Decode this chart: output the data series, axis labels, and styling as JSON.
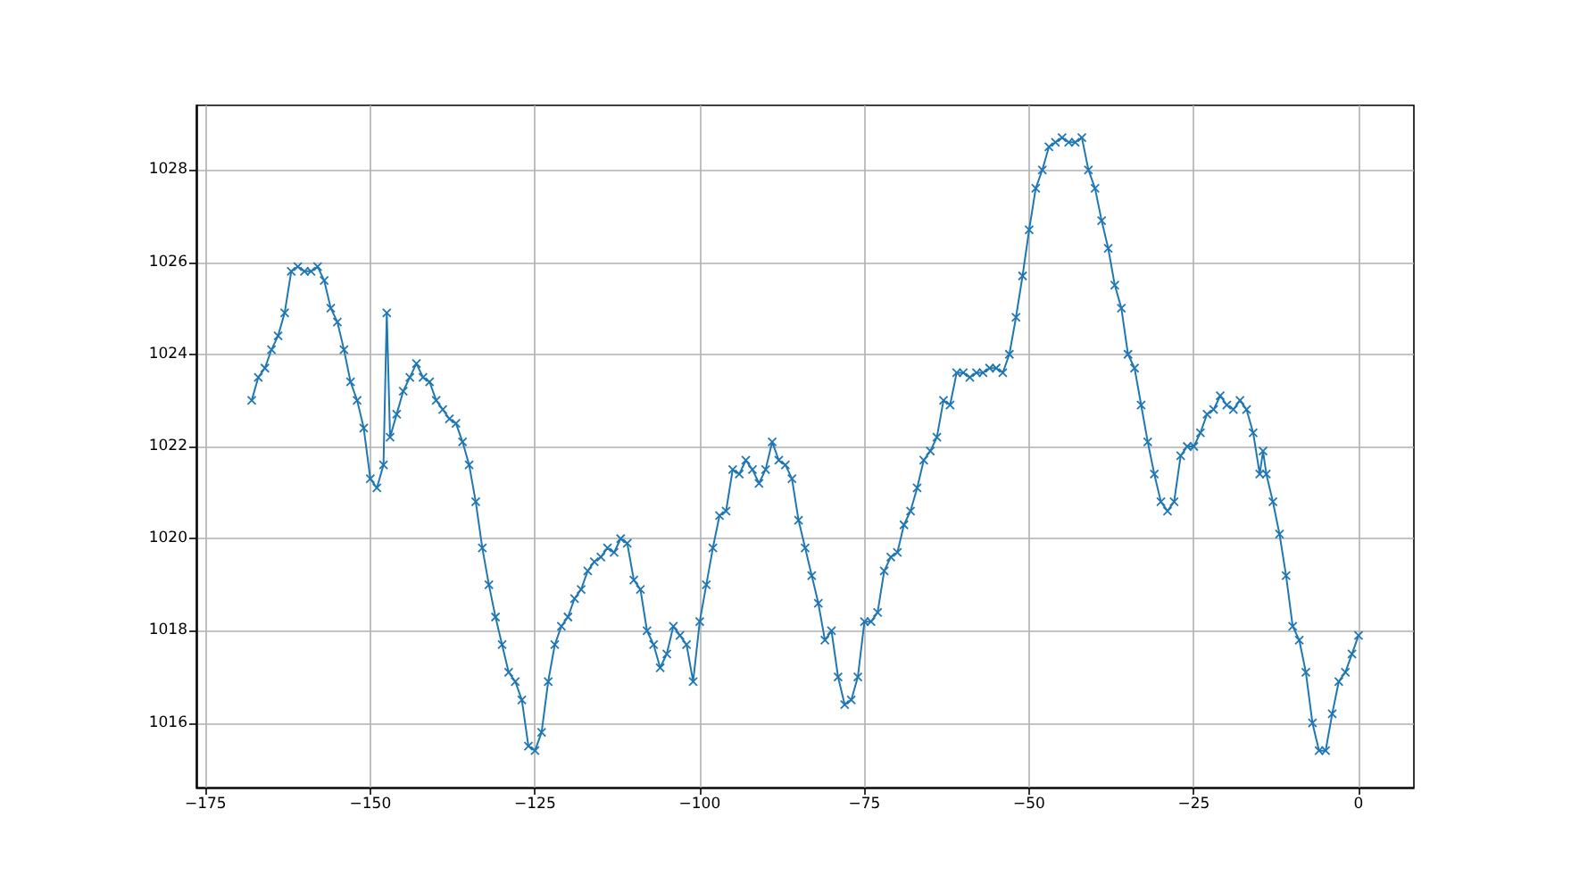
{
  "chart_data": {
    "type": "line",
    "color": "#1f77b4",
    "marker": "cross",
    "grid": true,
    "xlim": [
      -176.4,
      8.4
    ],
    "ylim": [
      1014.6,
      1029.4
    ],
    "xticks": [
      {
        "value": -175,
        "label": "−175"
      },
      {
        "value": -150,
        "label": "−150"
      },
      {
        "value": -125,
        "label": "−125"
      },
      {
        "value": -100,
        "label": "−100"
      },
      {
        "value": -75,
        "label": "−75"
      },
      {
        "value": -50,
        "label": "−50"
      },
      {
        "value": -25,
        "label": "−25"
      },
      {
        "value": 0,
        "label": "0"
      }
    ],
    "yticks": [
      1016,
      1018,
      1020,
      1022,
      1024,
      1026,
      1028
    ],
    "x": [
      -168,
      -167,
      -166,
      -165,
      -164,
      -163,
      -162,
      -161,
      -160,
      -159,
      -158,
      -157,
      -156,
      -155,
      -154,
      -153,
      -152,
      -151,
      -150,
      -149,
      -148,
      -147.5,
      -147,
      -146,
      -145,
      -144,
      -143,
      -142,
      -141,
      -140,
      -139,
      -138,
      -137,
      -136,
      -135,
      -134,
      -133,
      -132,
      -131,
      -130,
      -129,
      -128,
      -127,
      -126,
      -125,
      -124,
      -123,
      -122,
      -121,
      -120,
      -119,
      -118,
      -117,
      -116,
      -115,
      -114,
      -113,
      -112,
      -111,
      -110,
      -109,
      -108,
      -107,
      -106,
      -105,
      -104,
      -103,
      -102,
      -101,
      -100,
      -99,
      -98,
      -97,
      -96,
      -95,
      -94,
      -93,
      -92,
      -91,
      -90,
      -89,
      -88,
      -87,
      -86,
      -85,
      -84,
      -83,
      -82,
      -81,
      -80,
      -79,
      -78,
      -77,
      -76,
      -75,
      -74,
      -73,
      -72,
      -71,
      -70,
      -69,
      -68,
      -67,
      -66,
      -65,
      -64,
      -63,
      -62,
      -61,
      -60,
      -59,
      -58,
      -57,
      -56,
      -55,
      -54,
      -53,
      -52,
      -51,
      -50,
      -49,
      -48,
      -47,
      -46,
      -45,
      -44,
      -43,
      -42,
      -41,
      -40,
      -39,
      -38,
      -37,
      -36,
      -35,
      -34,
      -33,
      -32,
      -31,
      -30,
      -29,
      -28,
      -27,
      -26,
      -25,
      -24,
      -23,
      -22,
      -21,
      -20,
      -19,
      -18,
      -17,
      -16,
      -15,
      -14.5,
      -14,
      -13,
      -12,
      -11,
      -10,
      -9,
      -8,
      -7,
      -6,
      -5,
      -4,
      -3,
      -2,
      -1,
      0
    ],
    "values": [
      1023.0,
      1023.5,
      1023.7,
      1024.1,
      1024.4,
      1024.9,
      1025.8,
      1025.9,
      1025.8,
      1025.8,
      1025.9,
      1025.6,
      1025.0,
      1024.7,
      1024.1,
      1023.4,
      1023.0,
      1022.4,
      1021.3,
      1021.1,
      1021.6,
      1024.9,
      1022.2,
      1022.7,
      1023.2,
      1023.5,
      1023.8,
      1023.5,
      1023.4,
      1023.0,
      1022.8,
      1022.6,
      1022.5,
      1022.1,
      1021.6,
      1020.8,
      1019.8,
      1019.0,
      1018.3,
      1017.7,
      1017.1,
      1016.9,
      1016.5,
      1015.5,
      1015.4,
      1015.8,
      1016.9,
      1017.7,
      1018.1,
      1018.3,
      1018.7,
      1018.9,
      1019.3,
      1019.5,
      1019.6,
      1019.8,
      1019.7,
      1020.0,
      1019.9,
      1019.1,
      1018.9,
      1018.0,
      1017.7,
      1017.2,
      1017.5,
      1018.1,
      1017.9,
      1017.7,
      1016.9,
      1018.2,
      1019.0,
      1019.8,
      1020.5,
      1020.6,
      1021.5,
      1021.4,
      1021.7,
      1021.5,
      1021.2,
      1021.5,
      1022.1,
      1021.7,
      1021.6,
      1021.3,
      1020.4,
      1019.8,
      1019.2,
      1018.6,
      1017.8,
      1018.0,
      1017.0,
      1016.4,
      1016.5,
      1017.0,
      1018.2,
      1018.2,
      1018.4,
      1019.3,
      1019.6,
      1019.7,
      1020.3,
      1020.6,
      1021.1,
      1021.7,
      1021.9,
      1022.2,
      1023.0,
      1022.9,
      1023.6,
      1023.6,
      1023.5,
      1023.6,
      1023.6,
      1023.7,
      1023.7,
      1023.6,
      1024.0,
      1024.8,
      1025.7,
      1026.7,
      1027.6,
      1028.0,
      1028.5,
      1028.6,
      1028.7,
      1028.6,
      1028.6,
      1028.7,
      1028.0,
      1027.6,
      1026.9,
      1026.3,
      1025.5,
      1025.0,
      1024.0,
      1023.7,
      1022.9,
      1022.1,
      1021.4,
      1020.8,
      1020.6,
      1020.8,
      1021.8,
      1022.0,
      1022.0,
      1022.3,
      1022.7,
      1022.8,
      1023.1,
      1022.9,
      1022.8,
      1023.0,
      1022.8,
      1022.3,
      1021.4,
      1021.9,
      1021.4,
      1020.8,
      1020.1,
      1019.2,
      1018.1,
      1017.8,
      1017.1,
      1016.0,
      1015.4,
      1015.4,
      1016.2,
      1016.9,
      1017.1,
      1017.5,
      1017.9
    ]
  }
}
